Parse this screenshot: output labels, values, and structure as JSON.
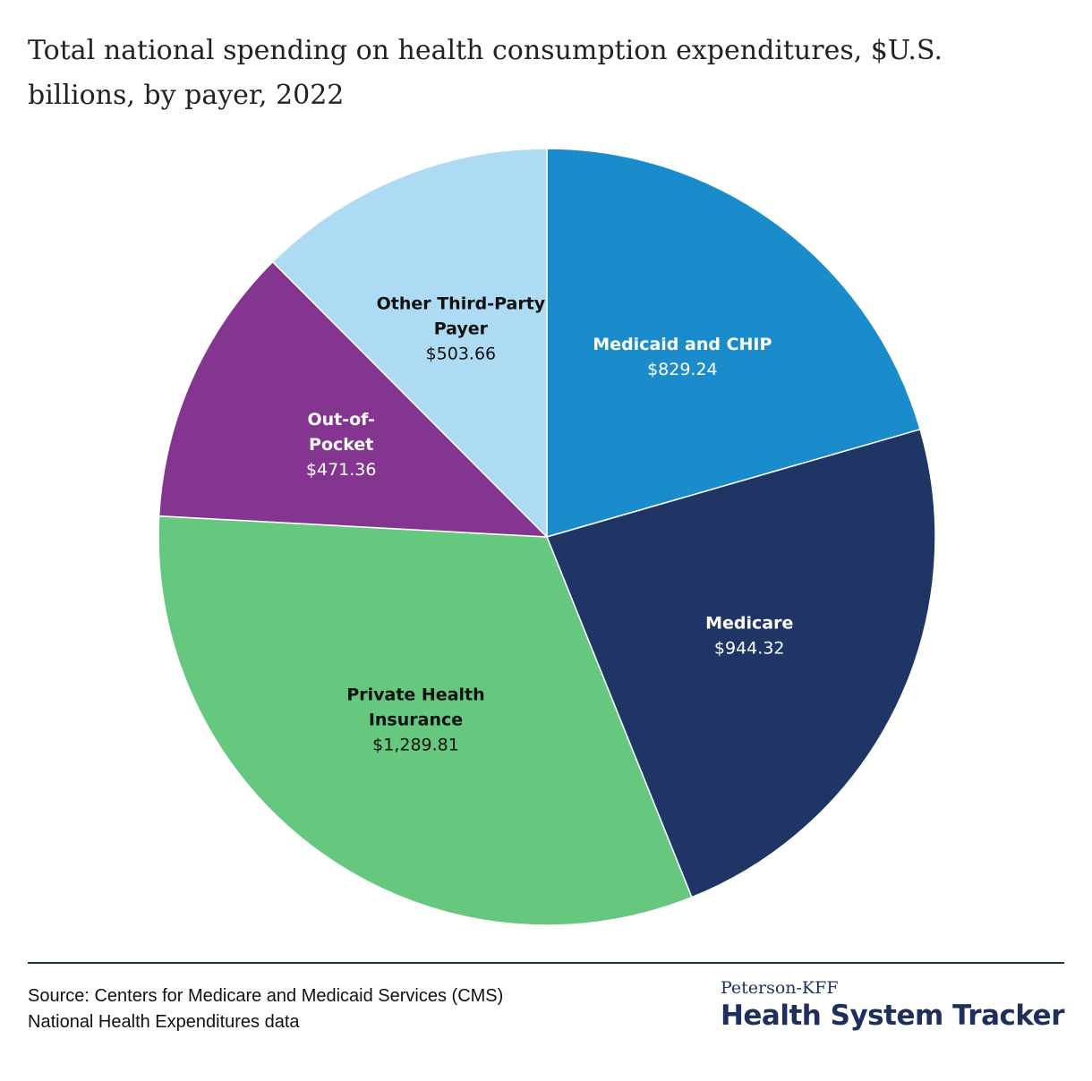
{
  "chart_data": {
    "type": "pie",
    "title": "Total national spending on health consumption expenditures, $U.S. billions, by payer, 2022",
    "start_angle_deg": 0,
    "direction": "clockwise",
    "slices": [
      {
        "name": "Medicaid and CHIP",
        "name_lines": [
          "Medicaid and CHIP"
        ],
        "value": 829.24,
        "value_label": "$829.24",
        "color": "#1a8bcb",
        "label_color": "#ffffff"
      },
      {
        "name": "Medicare",
        "name_lines": [
          "Medicare"
        ],
        "value": 944.32,
        "value_label": "$944.32",
        "color": "#1f3566",
        "label_color": "#ffffff"
      },
      {
        "name": "Private Health Insurance",
        "name_lines": [
          "Private Health",
          "Insurance"
        ],
        "value": 1289.81,
        "value_label": "$1,289.81",
        "color": "#66c77f",
        "label_color": "#111111"
      },
      {
        "name": "Out-of-Pocket",
        "name_lines": [
          "Out-of-",
          "Pocket"
        ],
        "value": 471.36,
        "value_label": "$471.36",
        "color": "#83358f",
        "label_color": "#ffffff"
      },
      {
        "name": "Other Third-Party Payer",
        "name_lines": [
          "Other Third-Party",
          "Payer"
        ],
        "value": 503.66,
        "value_label": "$503.66",
        "color": "#acdbf3",
        "label_color": "#111111"
      }
    ]
  },
  "footer": {
    "source_line1": "Source: Centers for Medicare and Medicaid Services (CMS)",
    "source_line2": "National Health Expenditures data",
    "brand_top": "Peterson-KFF",
    "brand_main": "Health System Tracker"
  },
  "colors": {
    "rule": "#1e2f5e",
    "brand": "#1e2f5e"
  }
}
